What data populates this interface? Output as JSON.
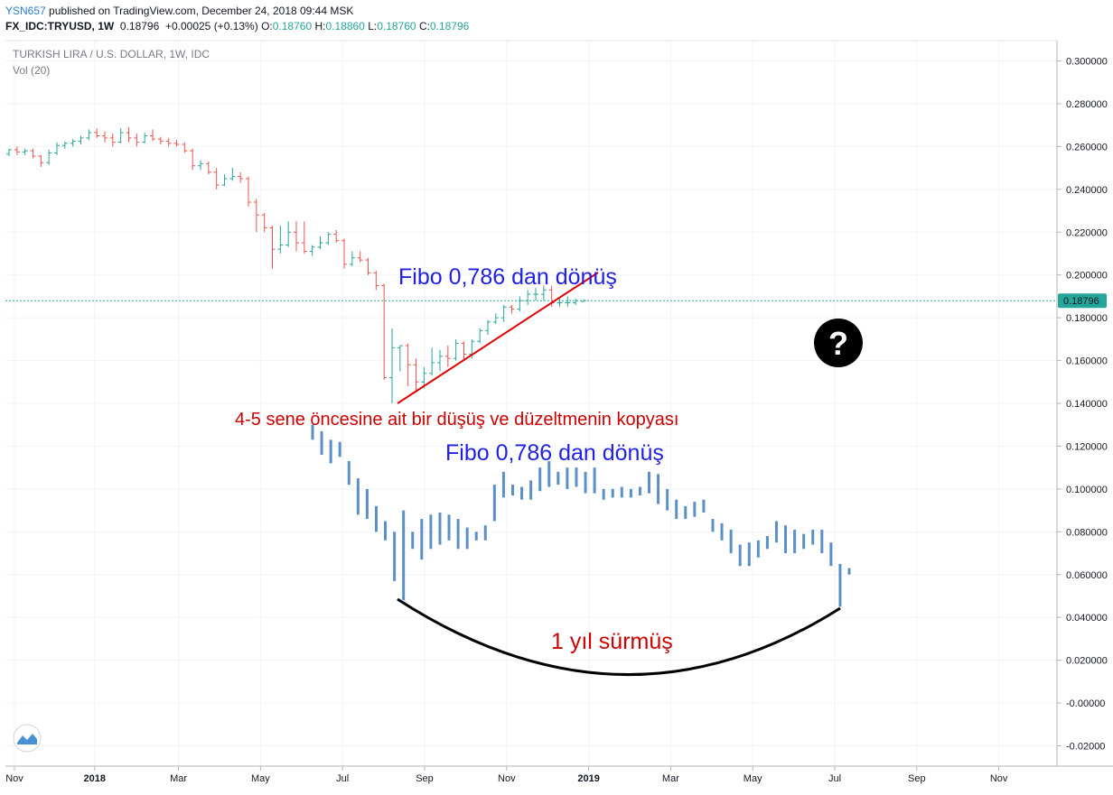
{
  "header": {
    "user": "YSN657",
    "published": "published on TradingView.com, December 24, 2018 09:44 MSK",
    "symbol": "FX_IDC:TRYUSD, 1W",
    "last": "0.18796",
    "change": "+0.00025 (+0.13%)",
    "o_label": "O:",
    "o_value": "0.18760",
    "h_label": "H:",
    "h_value": "0.18860",
    "l_label": "L:",
    "l_value": "0.18760",
    "c_label": "C:",
    "c_value": "0.18796"
  },
  "legend": {
    "title": "TURKISH LIRA / U.S. DOLLAR, 1W, IDC",
    "vol": "Vol (20)"
  },
  "chart_data": {
    "type": "ohlc",
    "title": "TURKISH LIRA / U.S. DOLLAR, 1W, IDC",
    "y_ticks": [
      "0.300000",
      "0.280000",
      "0.260000",
      "0.240000",
      "0.220000",
      "0.200000",
      "0.180000",
      "0.160000",
      "0.140000",
      "0.120000",
      "0.100000",
      "0.080000",
      "0.060000",
      "0.040000",
      "0.020000",
      "-0.00000",
      "-0.02000"
    ],
    "x_ticks": [
      "Nov",
      "2018",
      "Mar",
      "May",
      "Jul",
      "Sep",
      "Nov",
      "2019",
      "Mar",
      "May",
      "Jul",
      "Sep",
      "Nov"
    ],
    "ylim": [
      -0.025,
      0.305
    ],
    "last_price_label": "0.18796",
    "last_price": 0.18796,
    "colors": {
      "up": "#26a69a",
      "down": "#ef5350",
      "pattern": "#5b8fc7",
      "price_line": "#26a69a"
    },
    "series": [
      {
        "name": "TRYUSD",
        "bars": [
          [
            0.2565,
            0.259,
            0.2555,
            0.2585
          ],
          [
            0.2585,
            0.26,
            0.256,
            0.2575
          ],
          [
            0.2575,
            0.259,
            0.256,
            0.258
          ],
          [
            0.258,
            0.259,
            0.2545,
            0.2555
          ],
          [
            0.2555,
            0.256,
            0.2505,
            0.2525
          ],
          [
            0.2525,
            0.2585,
            0.2515,
            0.257
          ],
          [
            0.257,
            0.262,
            0.256,
            0.2605
          ],
          [
            0.2605,
            0.2625,
            0.259,
            0.2615
          ],
          [
            0.2615,
            0.2635,
            0.26,
            0.2625
          ],
          [
            0.2625,
            0.265,
            0.261,
            0.264
          ],
          [
            0.264,
            0.268,
            0.263,
            0.2665
          ],
          [
            0.2665,
            0.2685,
            0.264,
            0.265
          ],
          [
            0.265,
            0.267,
            0.262,
            0.264
          ],
          [
            0.264,
            0.266,
            0.26,
            0.262
          ],
          [
            0.262,
            0.2685,
            0.2615,
            0.2665
          ],
          [
            0.2665,
            0.269,
            0.262,
            0.264
          ],
          [
            0.264,
            0.266,
            0.26,
            0.262
          ],
          [
            0.262,
            0.2665,
            0.2615,
            0.265
          ],
          [
            0.265,
            0.268,
            0.2625,
            0.2635
          ],
          [
            0.2635,
            0.2645,
            0.261,
            0.2625
          ],
          [
            0.2625,
            0.264,
            0.26,
            0.2615
          ],
          [
            0.2615,
            0.263,
            0.26,
            0.261
          ],
          [
            0.261,
            0.262,
            0.257,
            0.258
          ],
          [
            0.258,
            0.259,
            0.249,
            0.251
          ],
          [
            0.251,
            0.2535,
            0.249,
            0.252
          ],
          [
            0.252,
            0.253,
            0.247,
            0.248
          ],
          [
            0.248,
            0.25,
            0.24,
            0.242
          ],
          [
            0.242,
            0.247,
            0.2415,
            0.245
          ],
          [
            0.245,
            0.25,
            0.244,
            0.246
          ],
          [
            0.246,
            0.248,
            0.243,
            0.245
          ],
          [
            0.245,
            0.246,
            0.232,
            0.234
          ],
          [
            0.234,
            0.2355,
            0.22,
            0.228
          ],
          [
            0.228,
            0.229,
            0.22,
            0.222
          ],
          [
            0.222,
            0.223,
            0.203,
            0.212
          ],
          [
            0.212,
            0.223,
            0.21,
            0.214
          ],
          [
            0.214,
            0.225,
            0.213,
            0.22
          ],
          [
            0.22,
            0.225,
            0.211,
            0.215
          ],
          [
            0.215,
            0.225,
            0.21,
            0.211
          ],
          [
            0.211,
            0.214,
            0.209,
            0.213
          ],
          [
            0.213,
            0.218,
            0.212,
            0.215
          ],
          [
            0.215,
            0.22,
            0.214,
            0.219
          ],
          [
            0.219,
            0.221,
            0.215,
            0.216
          ],
          [
            0.216,
            0.217,
            0.203,
            0.205
          ],
          [
            0.205,
            0.211,
            0.204,
            0.208
          ],
          [
            0.208,
            0.211,
            0.206,
            0.207
          ],
          [
            0.207,
            0.208,
            0.2,
            0.201
          ],
          [
            0.201,
            0.202,
            0.193,
            0.195
          ],
          [
            0.195,
            0.196,
            0.151,
            0.152
          ],
          [
            0.152,
            0.175,
            0.14,
            0.166
          ],
          [
            0.166,
            0.167,
            0.155,
            0.167
          ],
          [
            0.167,
            0.168,
            0.148,
            0.158
          ],
          [
            0.158,
            0.161,
            0.145,
            0.15
          ],
          [
            0.15,
            0.157,
            0.147,
            0.154
          ],
          [
            0.154,
            0.166,
            0.153,
            0.159
          ],
          [
            0.159,
            0.165,
            0.155,
            0.162
          ],
          [
            0.162,
            0.167,
            0.157,
            0.161
          ],
          [
            0.161,
            0.17,
            0.16,
            0.168
          ],
          [
            0.168,
            0.169,
            0.16,
            0.163
          ],
          [
            0.163,
            0.17,
            0.161,
            0.169
          ],
          [
            0.169,
            0.175,
            0.168,
            0.174
          ],
          [
            0.174,
            0.179,
            0.172,
            0.178
          ],
          [
            0.178,
            0.182,
            0.177,
            0.18
          ],
          [
            0.18,
            0.186,
            0.178,
            0.185
          ],
          [
            0.185,
            0.186,
            0.182,
            0.184
          ],
          [
            0.184,
            0.19,
            0.183,
            0.188
          ],
          [
            0.188,
            0.193,
            0.186,
            0.191
          ],
          [
            0.191,
            0.194,
            0.188,
            0.191
          ],
          [
            0.191,
            0.195,
            0.188,
            0.193
          ],
          [
            0.193,
            0.195,
            0.185,
            0.187
          ],
          [
            0.187,
            0.189,
            0.185,
            0.187
          ],
          [
            0.187,
            0.19,
            0.185,
            0.187
          ],
          [
            0.187,
            0.189,
            0.186,
            0.188
          ],
          [
            0.1876,
            0.1886,
            0.1876,
            0.188
          ]
        ]
      },
      {
        "name": "pattern",
        "bars": [
          [
            0.13,
            0.123
          ],
          [
            0.127,
            0.116
          ],
          [
            0.123,
            0.112
          ],
          [
            0.122,
            0.115
          ],
          [
            0.113,
            0.102
          ],
          [
            0.105,
            0.088
          ],
          [
            0.1,
            0.086
          ],
          [
            0.092,
            0.08
          ],
          [
            0.085,
            0.076
          ],
          [
            0.08,
            0.057
          ],
          [
            0.09,
            0.048
          ],
          [
            0.08,
            0.072
          ],
          [
            0.086,
            0.067
          ],
          [
            0.088,
            0.072
          ],
          [
            0.089,
            0.074
          ],
          [
            0.088,
            0.076
          ],
          [
            0.086,
            0.072
          ],
          [
            0.082,
            0.072
          ],
          [
            0.08,
            0.076
          ],
          [
            0.083,
            0.076
          ],
          [
            0.102,
            0.085
          ],
          [
            0.108,
            0.096
          ],
          [
            0.102,
            0.097
          ],
          [
            0.101,
            0.095
          ],
          [
            0.104,
            0.095
          ],
          [
            0.11,
            0.099
          ],
          [
            0.113,
            0.101
          ],
          [
            0.108,
            0.102
          ],
          [
            0.11,
            0.1
          ],
          [
            0.11,
            0.101
          ],
          [
            0.108,
            0.098
          ],
          [
            0.11,
            0.098
          ],
          [
            0.1,
            0.095
          ],
          [
            0.1,
            0.096
          ],
          [
            0.101,
            0.096
          ],
          [
            0.1,
            0.096
          ],
          [
            0.101,
            0.097
          ],
          [
            0.108,
            0.098
          ],
          [
            0.107,
            0.093
          ],
          [
            0.1,
            0.09
          ],
          [
            0.095,
            0.086
          ],
          [
            0.092,
            0.086
          ],
          [
            0.094,
            0.087
          ],
          [
            0.095,
            0.089
          ],
          [
            0.086,
            0.08
          ],
          [
            0.084,
            0.076
          ],
          [
            0.081,
            0.07
          ],
          [
            0.074,
            0.064
          ],
          [
            0.075,
            0.064
          ],
          [
            0.076,
            0.068
          ],
          [
            0.078,
            0.072
          ],
          [
            0.085,
            0.075
          ],
          [
            0.083,
            0.07
          ],
          [
            0.081,
            0.07
          ],
          [
            0.079,
            0.072
          ],
          [
            0.081,
            0.074
          ],
          [
            0.081,
            0.07
          ],
          [
            0.075,
            0.064
          ],
          [
            0.065,
            0.045
          ],
          [
            0.063,
            0.06
          ]
        ]
      }
    ]
  },
  "annotations": {
    "fibo_top": "Fibo 0,786 dan dönüş",
    "copy_note": "4-5 sene öncesine ait bir düşüş ve düzeltmenin kopyası",
    "fibo_bottom": "Fibo 0,786 dan dönüş",
    "duration": "1 yıl sürmüş",
    "question_mark": "?"
  }
}
